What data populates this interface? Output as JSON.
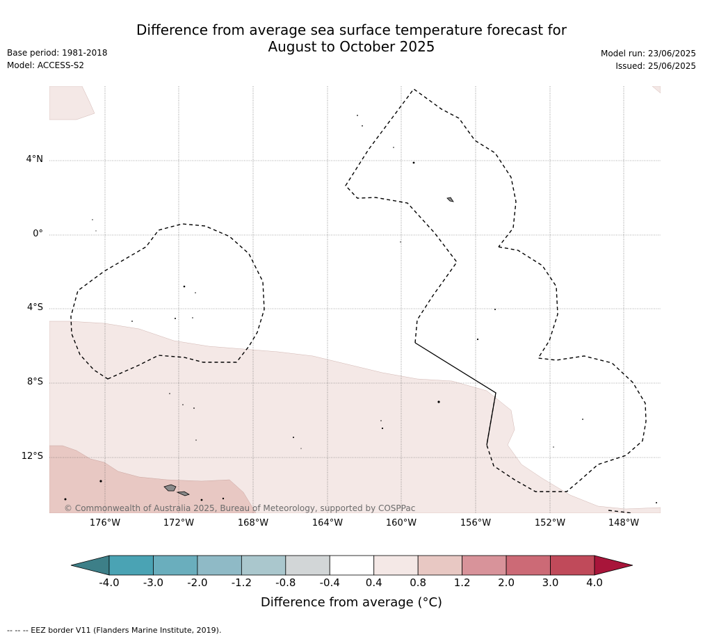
{
  "title": {
    "line1": "Difference from average sea surface temperature forecast for",
    "line2": "August to October 2025"
  },
  "meta_left": {
    "base_period": "Base period: 1981-2018",
    "model": "Model: ACCESS-S2"
  },
  "meta_right": {
    "model_run": "Model run: 23/06/2025",
    "issued": "Issued: 25/06/2025"
  },
  "map": {
    "lat_labels": [
      "4°N",
      "0°",
      "4°S",
      "8°S",
      "12°S"
    ],
    "lon_labels": [
      "176°W",
      "172°W",
      "168°W",
      "164°W",
      "160°W",
      "156°W",
      "152°W",
      "148°W"
    ],
    "copyright": "© Commonwealth of Australia 2025, Bureau of Meteorology, supported by COSPPac",
    "colors": {
      "anomaly_0_4_to_0_8": "#f4e8e6",
      "anomaly_0_8_to_1_2": "#e8c8c3",
      "land": "#8a8a8a",
      "eez_border": "#000000",
      "gridline": "#555555"
    }
  },
  "colorbar": {
    "ticks": [
      "-4.0",
      "-3.0",
      "-2.0",
      "-1.2",
      "-0.8",
      "-0.4",
      "0.4",
      "0.8",
      "1.2",
      "2.0",
      "3.0",
      "4.0"
    ],
    "colors": [
      "#3d7f88",
      "#4aa3b4",
      "#6aaebd",
      "#8fbac6",
      "#aac7cd",
      "#d2d6d7",
      "#ffffff",
      "#f4e8e6",
      "#e8c8c3",
      "#d8939a",
      "#cc6a76",
      "#c04a5a",
      "#a8153a"
    ],
    "label": "Difference from average (°C)"
  },
  "footer": "-- -- -- EEZ border V11 (Flanders Marine Institute, 2019)."
}
